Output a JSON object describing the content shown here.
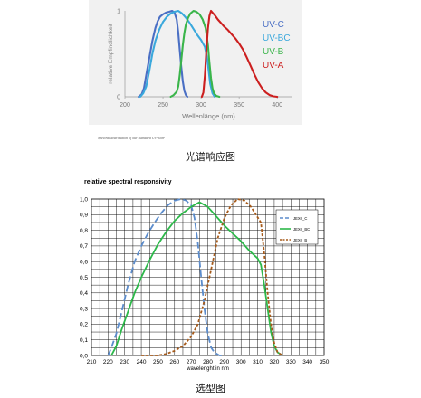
{
  "captions": {
    "top_note": "Spectral distribution of our standard UV-filter",
    "label_1": "光谱响应图",
    "label_2": "选型图"
  },
  "chart_data": [
    {
      "type": "line",
      "title": "",
      "xlabel": "Wellenlänge (nm)",
      "ylabel": "relative Empfindlichkeit",
      "xlim": [
        200,
        420
      ],
      "ylim": [
        0,
        1
      ],
      "x_ticks": [
        "200",
        "250",
        "300",
        "350",
        "400"
      ],
      "y_ticks": [
        "0",
        "1"
      ],
      "legend_position": "top-right",
      "series": [
        {
          "name": "UV-C",
          "color": "#4a6fc4",
          "x": [
            218,
            222,
            225,
            228,
            232,
            236,
            240,
            243,
            246,
            250,
            254,
            258,
            262,
            265,
            268,
            270,
            272,
            274,
            276,
            278,
            280,
            282
          ],
          "y": [
            0.0,
            0.03,
            0.1,
            0.25,
            0.45,
            0.65,
            0.8,
            0.88,
            0.93,
            0.96,
            0.98,
            0.99,
            1.0,
            0.98,
            0.9,
            0.75,
            0.55,
            0.35,
            0.18,
            0.07,
            0.02,
            0.0
          ]
        },
        {
          "name": "UV-BC",
          "color": "#3aa8dc",
          "x": [
            220,
            224,
            228,
            232,
            236,
            240,
            245,
            250,
            255,
            260,
            265,
            270,
            275,
            280,
            285,
            290,
            295,
            300,
            305,
            308,
            310,
            312,
            315,
            318
          ],
          "y": [
            0.0,
            0.04,
            0.12,
            0.3,
            0.5,
            0.65,
            0.78,
            0.87,
            0.93,
            0.97,
            0.99,
            1.0,
            0.97,
            0.92,
            0.86,
            0.79,
            0.72,
            0.66,
            0.58,
            0.45,
            0.3,
            0.15,
            0.04,
            0.0
          ]
        },
        {
          "name": "UV-B",
          "color": "#3ab54a",
          "x": [
            260,
            264,
            268,
            270,
            272,
            274,
            276,
            278,
            280,
            283,
            286,
            290,
            294,
            298,
            302,
            306,
            309,
            311,
            313,
            315,
            317,
            320,
            324
          ],
          "y": [
            0.0,
            0.02,
            0.06,
            0.12,
            0.25,
            0.42,
            0.6,
            0.74,
            0.84,
            0.92,
            0.97,
            1.0,
            0.99,
            0.96,
            0.9,
            0.8,
            0.6,
            0.4,
            0.22,
            0.1,
            0.04,
            0.01,
            0.0
          ]
        },
        {
          "name": "UV-A",
          "color": "#cc1f1f",
          "x": [
            301,
            303,
            305,
            307,
            309,
            311,
            313,
            315,
            318,
            322,
            326,
            330,
            335,
            340,
            345,
            350,
            355,
            360,
            365,
            370,
            375,
            380,
            385,
            390,
            395,
            400
          ],
          "y": [
            0.0,
            0.05,
            0.25,
            0.55,
            0.8,
            0.94,
            1.0,
            0.98,
            0.95,
            0.9,
            0.86,
            0.82,
            0.78,
            0.73,
            0.68,
            0.62,
            0.55,
            0.46,
            0.36,
            0.26,
            0.17,
            0.1,
            0.05,
            0.02,
            0.005,
            0.0
          ]
        }
      ]
    },
    {
      "type": "line",
      "title": "relative spectral responsivity",
      "xlabel": "wavelenght in nm",
      "ylabel": "",
      "xlim": [
        210,
        350
      ],
      "ylim": [
        0,
        1.0
      ],
      "x_ticks": [
        "210",
        "220",
        "230",
        "240",
        "250",
        "260",
        "270",
        "280",
        "290",
        "300",
        "310",
        "320",
        "330",
        "340",
        "350"
      ],
      "y_ticks": [
        "0,0",
        "0,1",
        "0,2",
        "0,3",
        "0,4",
        "0,5",
        "0,6",
        "0,7",
        "0,8",
        "0,9",
        "1,0"
      ],
      "grid": true,
      "legend_position": "top-right",
      "series": [
        {
          "name": "JEX0_C",
          "color": "#5b8ccc",
          "dash": "long",
          "x": [
            220,
            222,
            225,
            228,
            232,
            236,
            240,
            244,
            248,
            252,
            256,
            260,
            264,
            267,
            270,
            272,
            274,
            276,
            278,
            280,
            282,
            284,
            287,
            290
          ],
          "y": [
            0.0,
            0.05,
            0.14,
            0.27,
            0.45,
            0.6,
            0.7,
            0.78,
            0.85,
            0.91,
            0.96,
            0.99,
            1.0,
            0.99,
            0.96,
            0.88,
            0.72,
            0.5,
            0.3,
            0.14,
            0.05,
            0.02,
            0.0,
            0.0
          ]
        },
        {
          "name": "JEX0_BC",
          "color": "#2db84a",
          "dash": "solid",
          "x": [
            222,
            225,
            228,
            232,
            236,
            240,
            245,
            250,
            255,
            260,
            265,
            270,
            275,
            280,
            285,
            290,
            295,
            300,
            305,
            310,
            312,
            314,
            316,
            318,
            320,
            322,
            325
          ],
          "y": [
            0.0,
            0.06,
            0.16,
            0.28,
            0.4,
            0.5,
            0.61,
            0.71,
            0.79,
            0.86,
            0.91,
            0.95,
            0.98,
            0.95,
            0.89,
            0.83,
            0.78,
            0.73,
            0.67,
            0.62,
            0.58,
            0.45,
            0.3,
            0.15,
            0.06,
            0.02,
            0.0
          ]
        },
        {
          "name": "JEX0_B",
          "color": "#a65a1a",
          "dash": "short",
          "x": [
            240,
            250,
            255,
            260,
            265,
            270,
            274,
            278,
            282,
            286,
            290,
            294,
            298,
            302,
            306,
            309,
            312,
            314,
            316,
            318,
            320,
            322,
            325
          ],
          "y": [
            0.0,
            0.0,
            0.01,
            0.03,
            0.06,
            0.12,
            0.2,
            0.35,
            0.55,
            0.75,
            0.88,
            0.96,
            1.0,
            0.99,
            0.95,
            0.9,
            0.85,
            0.65,
            0.4,
            0.2,
            0.08,
            0.02,
            0.0
          ]
        }
      ]
    }
  ]
}
